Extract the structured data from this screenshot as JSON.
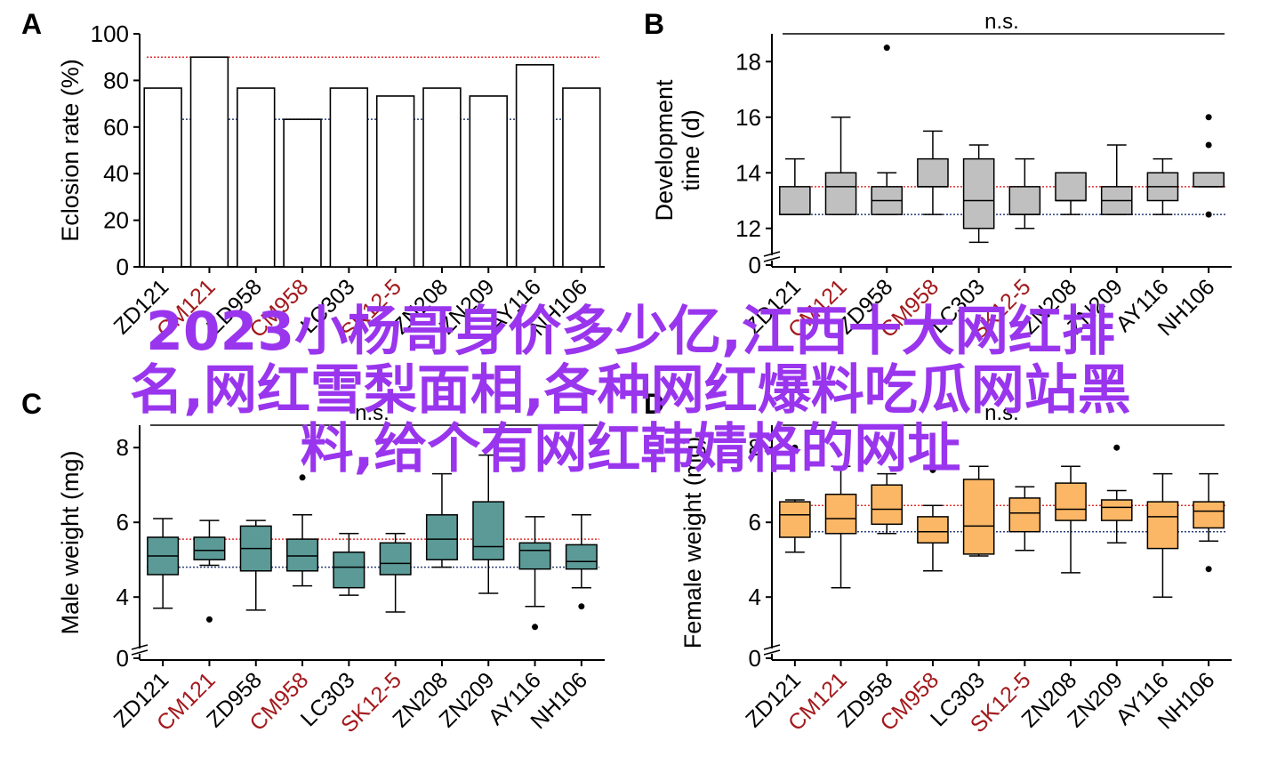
{
  "colors": {
    "axis": "#000000",
    "red_line": "#e0302e",
    "blue_line": "#2a3f7a",
    "highlight_label": "#a3191c",
    "box_B": "#c0c0c0",
    "box_C": "#5b9a97",
    "box_D": "#fbb765",
    "overlay_text": "#9a35ee"
  },
  "overlay": {
    "line1": "2023小杨哥身价多少亿,江西十大网红排",
    "line2": "名,网红雪梨面相,各种网红爆料吃瓜网站黑",
    "line3": "料,给个有网红韩婧格的网址"
  },
  "chart_data": [
    {
      "panel": "A",
      "type": "bar",
      "ylabel": "Eclosion rate (%)",
      "xlabel": "",
      "ylim": [
        0,
        100
      ],
      "yticks": [
        0,
        20,
        40,
        60,
        80,
        100
      ],
      "categories": [
        "ZD121",
        "CM121",
        "ZD958",
        "CM958",
        "LC303",
        "SK12-5",
        "ZN208",
        "ZN209",
        "AY116",
        "NH106"
      ],
      "highlighted": [
        "CM121",
        "CM958",
        "SK12-5"
      ],
      "values": [
        76.7,
        90,
        76.7,
        63.3,
        76.7,
        73.3,
        76.7,
        73.3,
        86.7,
        76.7
      ],
      "ref_lines": [
        {
          "color": "red",
          "y": 90
        },
        {
          "color": "blue",
          "y": 63.3
        }
      ]
    },
    {
      "panel": "B",
      "type": "box",
      "ylabel": "Development time (d)",
      "xlabel": "",
      "axis_break": true,
      "ylim": [
        11,
        19
      ],
      "yticks": [
        0,
        12,
        14,
        16,
        18
      ],
      "significance": "n.s.",
      "categories": [
        "ZD121",
        "CM121",
        "ZD958",
        "CM958",
        "LC303",
        "SK12-5",
        "ZN208",
        "ZN209",
        "AY116",
        "NH106"
      ],
      "highlighted": [
        "CM121",
        "CM958",
        "SK12-5"
      ],
      "boxes": [
        {
          "min": 12.5,
          "q1": 12.5,
          "median": 12.5,
          "q3": 13.5,
          "max": 14.5,
          "outliers": []
        },
        {
          "min": 12.5,
          "q1": 12.5,
          "median": 13.5,
          "q3": 14.0,
          "max": 16.0,
          "outliers": []
        },
        {
          "min": 12.5,
          "q1": 12.5,
          "median": 13.0,
          "q3": 13.5,
          "max": 14.0,
          "outliers": [
            18.5
          ]
        },
        {
          "min": 12.5,
          "q1": 13.5,
          "median": 13.5,
          "q3": 14.5,
          "max": 15.5,
          "outliers": []
        },
        {
          "min": 11.5,
          "q1": 12.0,
          "median": 13.0,
          "q3": 14.5,
          "max": 15.0,
          "outliers": []
        },
        {
          "min": 12.0,
          "q1": 12.5,
          "median": 12.5,
          "q3": 13.5,
          "max": 14.5,
          "outliers": []
        },
        {
          "min": 12.5,
          "q1": 13.0,
          "median": 13.0,
          "q3": 14.0,
          "max": 14.0,
          "outliers": []
        },
        {
          "min": 12.5,
          "q1": 12.5,
          "median": 13.0,
          "q3": 13.5,
          "max": 15.0,
          "outliers": []
        },
        {
          "min": 12.5,
          "q1": 13.0,
          "median": 13.5,
          "q3": 14.0,
          "max": 14.5,
          "outliers": []
        },
        {
          "min": 13.5,
          "q1": 13.5,
          "median": 13.5,
          "q3": 14.0,
          "max": 14.0,
          "outliers": [
            16.0,
            15.0,
            12.5
          ]
        }
      ],
      "ref_lines": [
        {
          "color": "red",
          "y": 13.5
        },
        {
          "color": "blue",
          "y": 12.5
        }
      ]
    },
    {
      "panel": "C",
      "type": "box",
      "ylabel": "Male weight (mg)",
      "xlabel": "",
      "axis_break": true,
      "ylim": [
        2.6,
        8.6
      ],
      "yticks": [
        0,
        4,
        6,
        8
      ],
      "significance": "n.s.",
      "categories": [
        "ZD121",
        "CM121",
        "ZD958",
        "CM958",
        "LC303",
        "SK12-5",
        "ZN208",
        "ZN209",
        "AY116",
        "NH106"
      ],
      "highlighted": [
        "CM121",
        "CM958",
        "SK12-5"
      ],
      "boxes": [
        {
          "min": 3.7,
          "q1": 4.6,
          "median": 5.1,
          "q3": 5.6,
          "max": 6.1,
          "outliers": []
        },
        {
          "min": 4.85,
          "q1": 5.0,
          "median": 5.25,
          "q3": 5.6,
          "max": 6.05,
          "outliers": [
            3.4
          ]
        },
        {
          "min": 3.65,
          "q1": 4.7,
          "median": 5.3,
          "q3": 5.9,
          "max": 6.05,
          "outliers": []
        },
        {
          "min": 4.3,
          "q1": 4.7,
          "median": 5.1,
          "q3": 5.55,
          "max": 6.2,
          "outliers": [
            7.2
          ]
        },
        {
          "min": 4.05,
          "q1": 4.25,
          "median": 4.8,
          "q3": 5.2,
          "max": 5.7,
          "outliers": []
        },
        {
          "min": 3.6,
          "q1": 4.6,
          "median": 4.9,
          "q3": 5.45,
          "max": 5.7,
          "outliers": []
        },
        {
          "min": 4.8,
          "q1": 5.0,
          "median": 5.55,
          "q3": 6.2,
          "max": 7.3,
          "outliers": []
        },
        {
          "min": 4.1,
          "q1": 5.0,
          "median": 5.35,
          "q3": 6.55,
          "max": 7.8,
          "outliers": []
        },
        {
          "min": 3.75,
          "q1": 4.75,
          "median": 5.25,
          "q3": 5.45,
          "max": 6.15,
          "outliers": [
            3.2
          ]
        },
        {
          "min": 4.25,
          "q1": 4.75,
          "median": 4.95,
          "q3": 5.4,
          "max": 6.2,
          "outliers": [
            3.75
          ]
        }
      ],
      "ref_lines": [
        {
          "color": "red",
          "y": 5.55
        },
        {
          "color": "blue",
          "y": 4.8
        }
      ]
    },
    {
      "panel": "D",
      "type": "box",
      "ylabel": "Female weight (mg)",
      "xlabel": "",
      "axis_break": true,
      "ylim": [
        2.6,
        8.6
      ],
      "yticks": [
        0,
        4,
        6,
        8
      ],
      "significance": "n.s.",
      "categories": [
        "ZD121",
        "CM121",
        "ZD958",
        "CM958",
        "LC303",
        "SK12-5",
        "ZN208",
        "ZN209",
        "AY116",
        "NH106"
      ],
      "highlighted": [
        "CM121",
        "CM958",
        "SK12-5"
      ],
      "boxes": [
        {
          "min": 5.2,
          "q1": 5.6,
          "median": 6.2,
          "q3": 6.55,
          "max": 6.6,
          "outliers": [
            8.0
          ]
        },
        {
          "min": 4.25,
          "q1": 5.7,
          "median": 6.1,
          "q3": 6.75,
          "max": 7.5,
          "outliers": []
        },
        {
          "min": 5.7,
          "q1": 5.95,
          "median": 6.35,
          "q3": 7.0,
          "max": 7.3,
          "outliers": []
        },
        {
          "min": 4.7,
          "q1": 5.45,
          "median": 5.75,
          "q3": 6.15,
          "max": 6.45,
          "outliers": [
            7.4
          ]
        },
        {
          "min": 5.1,
          "q1": 5.15,
          "median": 5.9,
          "q3": 7.15,
          "max": 7.5,
          "outliers": []
        },
        {
          "min": 5.25,
          "q1": 5.75,
          "median": 6.25,
          "q3": 6.65,
          "max": 6.95,
          "outliers": []
        },
        {
          "min": 4.65,
          "q1": 6.05,
          "median": 6.35,
          "q3": 7.05,
          "max": 7.5,
          "outliers": []
        },
        {
          "min": 5.45,
          "q1": 6.05,
          "median": 6.4,
          "q3": 6.6,
          "max": 6.85,
          "outliers": [
            8.0
          ]
        },
        {
          "min": 4.0,
          "q1": 5.3,
          "median": 6.15,
          "q3": 6.55,
          "max": 7.3,
          "outliers": []
        },
        {
          "min": 5.5,
          "q1": 5.85,
          "median": 6.3,
          "q3": 6.55,
          "max": 7.3,
          "outliers": [
            4.75
          ]
        }
      ],
      "ref_lines": [
        {
          "color": "red",
          "y": 6.45
        },
        {
          "color": "blue",
          "y": 5.75
        }
      ]
    }
  ]
}
